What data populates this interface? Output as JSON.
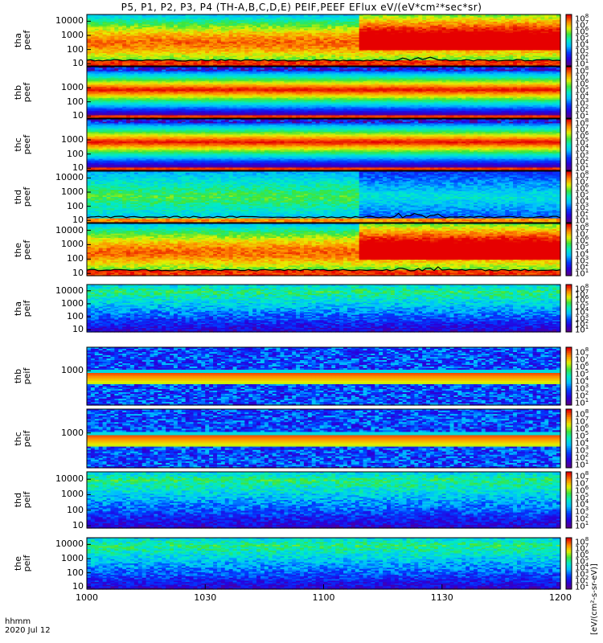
{
  "title": "P5, P1, P2, P3, P4 (TH-A,B,C,D,E) PEIF,PEEF EFlux eV/(eV*cm²*sec*sr)",
  "colorbar_units": "[eV/(cm²-s-sr-eV)]",
  "time_label": "hhmm",
  "date_label": "2020 Jul 12",
  "chart_data": [
    {
      "type": "heatmap",
      "probe": "tha",
      "species": "peef",
      "label": "tha\npeef",
      "yscale": "log",
      "ylim": [
        7,
        30000
      ],
      "yticks": [
        "10000",
        "1000",
        "100",
        "10"
      ],
      "cbar": [
        1,
        8
      ],
      "profile": "e_active",
      "dropline": true
    },
    {
      "type": "heatmap",
      "probe": "thb",
      "species": "peef",
      "label": "thb\npeef",
      "yscale": "log",
      "ylim": [
        7,
        30000
      ],
      "yticks": [
        "1000",
        "100",
        "10"
      ],
      "cbar": [
        1,
        8
      ],
      "profile": "e_band",
      "dropline": false
    },
    {
      "type": "heatmap",
      "probe": "thc",
      "species": "peef",
      "label": "thc\npeef",
      "yscale": "log",
      "ylim": [
        7,
        30000
      ],
      "yticks": [
        "1000",
        "100",
        "10"
      ],
      "cbar": [
        1,
        8
      ],
      "profile": "e_band",
      "dropline": false
    },
    {
      "type": "heatmap",
      "probe": "thd",
      "species": "peef",
      "label": "thd\npeef",
      "yscale": "log",
      "ylim": [
        7,
        30000
      ],
      "yticks": [
        "10000",
        "1000",
        "100",
        "10"
      ],
      "cbar": [
        1,
        8
      ],
      "profile": "e_quiet",
      "dropline": true
    },
    {
      "type": "heatmap",
      "probe": "the",
      "species": "peef",
      "label": "the\npeef",
      "yscale": "log",
      "ylim": [
        7,
        30000
      ],
      "yticks": [
        "10000",
        "1000",
        "100",
        "10"
      ],
      "cbar": [
        1,
        8
      ],
      "profile": "e_active",
      "dropline": true
    },
    {
      "type": "heatmap",
      "probe": "tha",
      "species": "peif",
      "label": "tha\npeif",
      "yscale": "log",
      "ylim": [
        7,
        30000
      ],
      "yticks": [
        "10000",
        "1000",
        "100",
        "10"
      ],
      "cbar": [
        1,
        8
      ],
      "profile": "i_normal"
    },
    {
      "type": "heatmap",
      "probe": "thb",
      "species": "peif",
      "label": "thb\npeif",
      "yscale": "log",
      "ylim": [
        7,
        30000
      ],
      "yticks": [
        "1000"
      ],
      "cbar": [
        1,
        8
      ],
      "profile": "i_band"
    },
    {
      "type": "heatmap",
      "probe": "thc",
      "species": "peif",
      "label": "thc\npeif",
      "yscale": "log",
      "ylim": [
        7,
        30000
      ],
      "yticks": [
        "1000"
      ],
      "cbar": [
        1,
        8
      ],
      "profile": "i_band"
    },
    {
      "type": "heatmap",
      "probe": "thd",
      "species": "peif",
      "label": "thd\npeif",
      "yscale": "log",
      "ylim": [
        7,
        30000
      ],
      "yticks": [
        "10000",
        "1000",
        "100",
        "10"
      ],
      "cbar": [
        1,
        8
      ],
      "profile": "i_normal"
    },
    {
      "type": "heatmap",
      "probe": "the",
      "species": "peif",
      "label": "the\npeif",
      "yscale": "log",
      "ylim": [
        7,
        30000
      ],
      "yticks": [
        "10000",
        "1000",
        "100",
        "10"
      ],
      "cbar": [
        1,
        8
      ],
      "profile": "i_normal"
    }
  ],
  "x_axis": {
    "ticks": [
      "1000",
      "1030",
      "1100",
      "1130",
      "1200"
    ],
    "range_hhmm": [
      "1000",
      "1200"
    ]
  }
}
